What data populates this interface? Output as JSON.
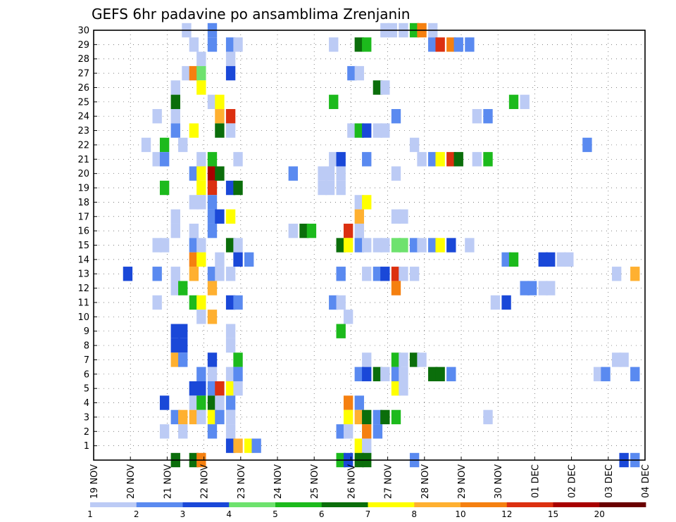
{
  "chart_data": {
    "type": "heatmap",
    "title": "GEFS 6hr padavine po ansamblima Zrenjanin",
    "xlabel": "",
    "ylabel": "",
    "x_axis": {
      "unit": "days since 19 NOV",
      "range": [
        0,
        15
      ],
      "tick_labels": [
        "19 NOV",
        "20 NOV",
        "21 NOV",
        "22 NOV",
        "23 NOV",
        "24 NOV",
        "25 NOV",
        "26 NOV",
        "27 NOV",
        "28 NOV",
        "29 NOV",
        "30 NOV",
        "01 DEC",
        "02 DEC",
        "03 DEC",
        "04 DEC"
      ]
    },
    "y_axis": {
      "range": [
        0,
        30
      ],
      "tick_labels": [
        "1",
        "2",
        "3",
        "4",
        "5",
        "6",
        "7",
        "8",
        "9",
        "10",
        "11",
        "12",
        "13",
        "14",
        "15",
        "16",
        "17",
        "18",
        "19",
        "20",
        "21",
        "22",
        "23",
        "24",
        "25",
        "26",
        "27",
        "28",
        "29",
        "30"
      ]
    },
    "grid": true,
    "colorbar": {
      "levels": [
        "1",
        "2",
        "3",
        "4",
        "5",
        "6",
        "7",
        "8",
        "10",
        "12",
        "15",
        "20"
      ],
      "colors": [
        "#bccbf5",
        "#5a8af0",
        "#1a48d8",
        "#6ee26e",
        "#1cba1c",
        "#0b6e0b",
        "#ffff00",
        "#ffb030",
        "#f58010",
        "#dc3010",
        "#a80000",
        "#6a0000"
      ]
    },
    "cells": [
      [
        30,
        2.4,
        0
      ],
      [
        30,
        3.1,
        1
      ],
      [
        30,
        7.8,
        0
      ],
      [
        30,
        8.0,
        0
      ],
      [
        30,
        8.3,
        0
      ],
      [
        30,
        8.6,
        4
      ],
      [
        30,
        8.8,
        8
      ],
      [
        30,
        9.1,
        0
      ],
      [
        29,
        2.6,
        0
      ],
      [
        29,
        3.1,
        1
      ],
      [
        29,
        3.6,
        1
      ],
      [
        29,
        3.8,
        0
      ],
      [
        29,
        6.4,
        0
      ],
      [
        29,
        7.1,
        5
      ],
      [
        29,
        7.3,
        4
      ],
      [
        29,
        9.1,
        1
      ],
      [
        29,
        9.3,
        9
      ],
      [
        29,
        9.6,
        8
      ],
      [
        29,
        9.8,
        1
      ],
      [
        29,
        10.1,
        1
      ],
      [
        28,
        2.8,
        0
      ],
      [
        28,
        3.6,
        0
      ],
      [
        27,
        2.4,
        0
      ],
      [
        27,
        2.6,
        8
      ],
      [
        27,
        2.8,
        3
      ],
      [
        27,
        3.6,
        2
      ],
      [
        27,
        6.9,
        1
      ],
      [
        27,
        7.1,
        0
      ],
      [
        26,
        2.1,
        0
      ],
      [
        26,
        2.8,
        6
      ],
      [
        26,
        7.6,
        5
      ],
      [
        26,
        7.8,
        0
      ],
      [
        25,
        2.1,
        5
      ],
      [
        25,
        3.1,
        0
      ],
      [
        25,
        3.3,
        6
      ],
      [
        25,
        6.4,
        4
      ],
      [
        25,
        11.3,
        4
      ],
      [
        25,
        11.6,
        0
      ],
      [
        24,
        1.6,
        0
      ],
      [
        24,
        2.1,
        0
      ],
      [
        24,
        3.3,
        7
      ],
      [
        24,
        3.6,
        9
      ],
      [
        24,
        8.1,
        1
      ],
      [
        24,
        10.3,
        0
      ],
      [
        24,
        10.6,
        1
      ],
      [
        23,
        2.1,
        1
      ],
      [
        23,
        2.6,
        6
      ],
      [
        23,
        3.3,
        5
      ],
      [
        23,
        3.6,
        0
      ],
      [
        23,
        6.9,
        0
      ],
      [
        23,
        7.1,
        4
      ],
      [
        23,
        7.3,
        2
      ],
      [
        23,
        7.6,
        0
      ],
      [
        23,
        7.8,
        0
      ],
      [
        22,
        1.3,
        0
      ],
      [
        22,
        1.8,
        4
      ],
      [
        22,
        2.3,
        0
      ],
      [
        22,
        8.6,
        0
      ],
      [
        22,
        13.3,
        1
      ],
      [
        21,
        1.6,
        0
      ],
      [
        21,
        1.8,
        1
      ],
      [
        21,
        2.8,
        0
      ],
      [
        21,
        3.1,
        4
      ],
      [
        21,
        3.8,
        0
      ],
      [
        21,
        6.4,
        0
      ],
      [
        21,
        6.6,
        2
      ],
      [
        21,
        7.3,
        1
      ],
      [
        21,
        8.8,
        0
      ],
      [
        21,
        9.1,
        1
      ],
      [
        21,
        9.3,
        6
      ],
      [
        21,
        9.6,
        9
      ],
      [
        21,
        9.8,
        5
      ],
      [
        21,
        10.3,
        0
      ],
      [
        21,
        10.6,
        4
      ],
      [
        20,
        2.6,
        1
      ],
      [
        20,
        2.8,
        6
      ],
      [
        20,
        3.1,
        10
      ],
      [
        20,
        3.3,
        5
      ],
      [
        20,
        5.3,
        1
      ],
      [
        20,
        6.1,
        0
      ],
      [
        20,
        6.3,
        0
      ],
      [
        20,
        6.6,
        0
      ],
      [
        20,
        8.1,
        0
      ],
      [
        19,
        1.8,
        4
      ],
      [
        19,
        2.8,
        6
      ],
      [
        19,
        3.1,
        9
      ],
      [
        19,
        3.6,
        2
      ],
      [
        19,
        3.8,
        5
      ],
      [
        19,
        6.1,
        0
      ],
      [
        19,
        6.3,
        0
      ],
      [
        19,
        6.6,
        0
      ],
      [
        18,
        2.6,
        0
      ],
      [
        18,
        2.8,
        0
      ],
      [
        18,
        3.1,
        1
      ],
      [
        18,
        7.1,
        0
      ],
      [
        18,
        7.3,
        6
      ],
      [
        17,
        2.1,
        0
      ],
      [
        17,
        3.1,
        1
      ],
      [
        17,
        3.3,
        2
      ],
      [
        17,
        3.6,
        6
      ],
      [
        17,
        7.1,
        7
      ],
      [
        17,
        8.1,
        0
      ],
      [
        17,
        8.3,
        0
      ],
      [
        16,
        2.1,
        0
      ],
      [
        16,
        2.6,
        0
      ],
      [
        16,
        3.1,
        1
      ],
      [
        16,
        5.3,
        0
      ],
      [
        16,
        5.6,
        5
      ],
      [
        16,
        5.8,
        4
      ],
      [
        16,
        6.8,
        9
      ],
      [
        16,
        7.1,
        0
      ],
      [
        15,
        1.6,
        0
      ],
      [
        15,
        1.8,
        0
      ],
      [
        15,
        2.6,
        1
      ],
      [
        15,
        2.8,
        0
      ],
      [
        15,
        3.6,
        5
      ],
      [
        15,
        3.8,
        0
      ],
      [
        15,
        6.6,
        5
      ],
      [
        15,
        6.8,
        6
      ],
      [
        15,
        7.1,
        1
      ],
      [
        15,
        7.3,
        0
      ],
      [
        15,
        7.6,
        0
      ],
      [
        15,
        7.8,
        0
      ],
      [
        15,
        8.1,
        3
      ],
      [
        15,
        8.3,
        3
      ],
      [
        15,
        8.6,
        1
      ],
      [
        15,
        8.8,
        0
      ],
      [
        15,
        9.1,
        1
      ],
      [
        15,
        9.3,
        6
      ],
      [
        15,
        9.6,
        2
      ],
      [
        15,
        10.1,
        0
      ],
      [
        14,
        2.6,
        8
      ],
      [
        14,
        2.8,
        6
      ],
      [
        14,
        3.3,
        0
      ],
      [
        14,
        3.8,
        2
      ],
      [
        14,
        4.1,
        1
      ],
      [
        14,
        11.1,
        1
      ],
      [
        14,
        11.3,
        4
      ],
      [
        14,
        12.1,
        2
      ],
      [
        14,
        12.3,
        2
      ],
      [
        14,
        12.6,
        0
      ],
      [
        14,
        12.8,
        0
      ],
      [
        13,
        0.8,
        2
      ],
      [
        13,
        1.6,
        1
      ],
      [
        13,
        2.1,
        0
      ],
      [
        13,
        2.6,
        7
      ],
      [
        13,
        3.1,
        1
      ],
      [
        13,
        3.3,
        0
      ],
      [
        13,
        3.6,
        0
      ],
      [
        13,
        6.6,
        1
      ],
      [
        13,
        7.3,
        0
      ],
      [
        13,
        7.6,
        1
      ],
      [
        13,
        7.8,
        2
      ],
      [
        13,
        8.1,
        9
      ],
      [
        13,
        8.3,
        0
      ],
      [
        13,
        8.6,
        0
      ],
      [
        13,
        14.1,
        0
      ],
      [
        13,
        14.6,
        7
      ],
      [
        12,
        2.1,
        0
      ],
      [
        12,
        2.3,
        4
      ],
      [
        12,
        3.1,
        7
      ],
      [
        12,
        8.1,
        8
      ],
      [
        12,
        11.6,
        1
      ],
      [
        12,
        11.8,
        1
      ],
      [
        12,
        12.1,
        0
      ],
      [
        12,
        12.3,
        0
      ],
      [
        11,
        1.6,
        0
      ],
      [
        11,
        2.6,
        4
      ],
      [
        11,
        2.8,
        6
      ],
      [
        11,
        3.6,
        2
      ],
      [
        11,
        3.8,
        1
      ],
      [
        11,
        6.4,
        1
      ],
      [
        11,
        6.6,
        0
      ],
      [
        11,
        10.8,
        0
      ],
      [
        11,
        11.1,
        2
      ],
      [
        10,
        2.8,
        0
      ],
      [
        10,
        3.1,
        7
      ],
      [
        10,
        6.8,
        0
      ],
      [
        9,
        2.1,
        2
      ],
      [
        9,
        2.3,
        2
      ],
      [
        9,
        3.6,
        0
      ],
      [
        9,
        6.6,
        4
      ],
      [
        8,
        2.1,
        2
      ],
      [
        8,
        2.3,
        2
      ],
      [
        8,
        3.6,
        0
      ],
      [
        7,
        2.1,
        7
      ],
      [
        7,
        2.3,
        1
      ],
      [
        7,
        3.1,
        2
      ],
      [
        7,
        3.8,
        4
      ],
      [
        7,
        7.3,
        0
      ],
      [
        7,
        8.1,
        4
      ],
      [
        7,
        8.3,
        0
      ],
      [
        7,
        8.6,
        5
      ],
      [
        7,
        8.8,
        0
      ],
      [
        7,
        14.1,
        0
      ],
      [
        7,
        14.3,
        0
      ],
      [
        6,
        2.8,
        1
      ],
      [
        6,
        3.1,
        0
      ],
      [
        6,
        3.6,
        0
      ],
      [
        6,
        3.8,
        1
      ],
      [
        6,
        7.1,
        1
      ],
      [
        6,
        7.3,
        2
      ],
      [
        6,
        7.6,
        5
      ],
      [
        6,
        7.8,
        0
      ],
      [
        6,
        8.1,
        1
      ],
      [
        6,
        8.3,
        0
      ],
      [
        6,
        9.1,
        5
      ],
      [
        6,
        9.3,
        5
      ],
      [
        6,
        9.6,
        1
      ],
      [
        6,
        13.6,
        0
      ],
      [
        6,
        13.8,
        1
      ],
      [
        6,
        14.6,
        1
      ],
      [
        5,
        2.6,
        2
      ],
      [
        5,
        2.8,
        2
      ],
      [
        5,
        3.1,
        1
      ],
      [
        5,
        3.3,
        9
      ],
      [
        5,
        3.6,
        6
      ],
      [
        5,
        3.8,
        0
      ],
      [
        5,
        8.1,
        6
      ],
      [
        5,
        8.3,
        0
      ],
      [
        4,
        1.8,
        2
      ],
      [
        4,
        2.6,
        0
      ],
      [
        4,
        2.8,
        4
      ],
      [
        4,
        3.1,
        5
      ],
      [
        4,
        3.3,
        0
      ],
      [
        4,
        3.6,
        1
      ],
      [
        4,
        6.8,
        8
      ],
      [
        4,
        7.1,
        1
      ],
      [
        3,
        2.1,
        1
      ],
      [
        3,
        2.3,
        7
      ],
      [
        3,
        2.6,
        7
      ],
      [
        3,
        2.8,
        0
      ],
      [
        3,
        3.1,
        6
      ],
      [
        3,
        3.3,
        1
      ],
      [
        3,
        3.6,
        0
      ],
      [
        3,
        6.8,
        6
      ],
      [
        3,
        7.1,
        7
      ],
      [
        3,
        7.3,
        5
      ],
      [
        3,
        7.6,
        1
      ],
      [
        3,
        7.8,
        5
      ],
      [
        3,
        8.1,
        4
      ],
      [
        3,
        10.6,
        0
      ],
      [
        2,
        1.8,
        0
      ],
      [
        2,
        2.3,
        0
      ],
      [
        2,
        3.1,
        1
      ],
      [
        2,
        3.6,
        0
      ],
      [
        2,
        6.6,
        1
      ],
      [
        2,
        6.8,
        0
      ],
      [
        2,
        7.3,
        8
      ],
      [
        2,
        7.6,
        1
      ],
      [
        1,
        3.6,
        2
      ],
      [
        1,
        3.8,
        7
      ],
      [
        1,
        4.1,
        6
      ],
      [
        1,
        4.3,
        1
      ],
      [
        1,
        7.1,
        6
      ],
      [
        1,
        7.3,
        0
      ],
      [
        0,
        2.1,
        5
      ],
      [
        0,
        2.6,
        5
      ],
      [
        0,
        2.8,
        8
      ],
      [
        0,
        6.6,
        4
      ],
      [
        0,
        6.8,
        2
      ],
      [
        0,
        7.1,
        5
      ],
      [
        0,
        7.3,
        5
      ],
      [
        0,
        8.6,
        1
      ],
      [
        0,
        14.3,
        2
      ],
      [
        0,
        14.6,
        1
      ]
    ]
  }
}
